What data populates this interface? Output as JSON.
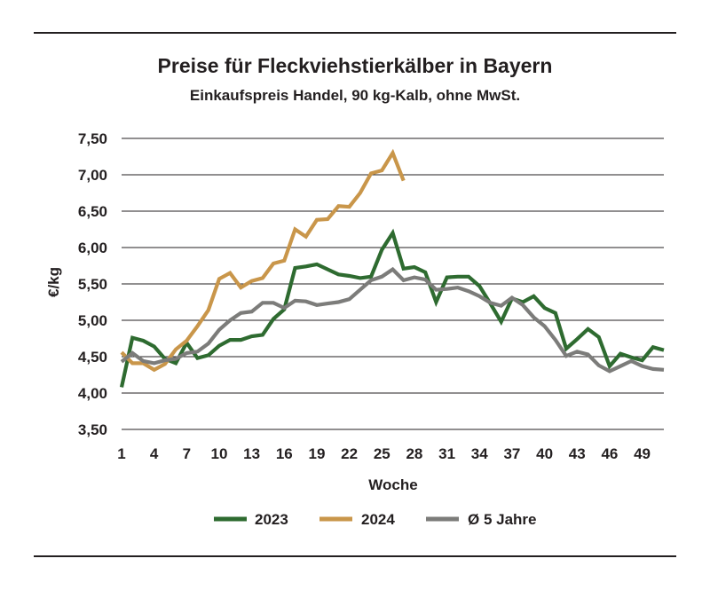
{
  "chart_data": {
    "type": "line",
    "title": "Preise für Fleckviehstierkälber in Bayern",
    "subtitle": "Einkaufspreis Handel, 90 kg-Kalb, ohne MwSt.",
    "xlabel": "Woche",
    "ylabel": "€/kg",
    "xlim": [
      1,
      51
    ],
    "ylim": [
      3.5,
      7.5
    ],
    "x_ticks": [
      1,
      4,
      7,
      10,
      13,
      16,
      19,
      22,
      25,
      28,
      31,
      34,
      37,
      40,
      43,
      46,
      49
    ],
    "y_ticks": [
      3.5,
      4.0,
      4.5,
      5.0,
      5.5,
      6.0,
      6.5,
      7.0,
      7.5
    ],
    "y_tick_labels": [
      "3,50",
      "4,00",
      "4,50",
      "5,00",
      "5,50",
      "6,00",
      "6,50",
      "7,00",
      "7,50"
    ],
    "grid": "horizontal",
    "legend_position": "bottom",
    "series": [
      {
        "name": "2023",
        "color": "#2e6b30",
        "x": [
          1,
          2,
          3,
          4,
          5,
          6,
          7,
          8,
          9,
          10,
          11,
          12,
          13,
          14,
          15,
          16,
          17,
          18,
          19,
          20,
          21,
          22,
          23,
          24,
          25,
          26,
          27,
          28,
          29,
          30,
          31,
          32,
          33,
          34,
          35,
          36,
          37,
          38,
          39,
          40,
          41,
          42,
          43,
          44,
          45,
          46,
          47,
          48,
          49,
          50,
          51
        ],
        "values": [
          4.08,
          4.76,
          4.72,
          4.64,
          4.47,
          4.41,
          4.69,
          4.48,
          4.52,
          4.65,
          4.73,
          4.73,
          4.78,
          4.8,
          5.02,
          5.15,
          5.72,
          5.74,
          5.77,
          5.7,
          5.63,
          5.61,
          5.58,
          5.6,
          5.97,
          6.2,
          5.71,
          5.73,
          5.66,
          5.25,
          5.59,
          5.6,
          5.6,
          5.47,
          5.23,
          4.98,
          5.3,
          5.25,
          5.33,
          5.17,
          5.1,
          4.61,
          4.74,
          4.88,
          4.77,
          4.37,
          4.54,
          4.49,
          4.45,
          4.63,
          4.59
        ]
      },
      {
        "name": "2024",
        "color": "#c9964a",
        "x": [
          1,
          2,
          3,
          4,
          5,
          6,
          7,
          8,
          9,
          10,
          11,
          12,
          13,
          14,
          15,
          16,
          17,
          18,
          19,
          20,
          21,
          22,
          23,
          24,
          25,
          26,
          27
        ],
        "values": [
          4.56,
          4.41,
          4.41,
          4.32,
          4.4,
          4.6,
          4.72,
          4.92,
          5.14,
          5.57,
          5.65,
          5.45,
          5.54,
          5.58,
          5.78,
          5.82,
          6.25,
          6.15,
          6.38,
          6.39,
          6.57,
          6.56,
          6.75,
          7.02,
          7.06,
          7.3,
          6.92
        ]
      },
      {
        "name": "Ø 5 Jahre",
        "color": "#7c7c7a",
        "x": [
          1,
          2,
          3,
          4,
          5,
          6,
          7,
          8,
          9,
          10,
          11,
          12,
          13,
          14,
          15,
          16,
          17,
          18,
          19,
          20,
          21,
          22,
          23,
          24,
          25,
          26,
          27,
          28,
          29,
          30,
          31,
          32,
          33,
          34,
          35,
          36,
          37,
          38,
          39,
          40,
          41,
          42,
          43,
          44,
          45,
          46,
          47,
          48,
          49,
          50,
          51
        ],
        "values": [
          4.43,
          4.55,
          4.44,
          4.41,
          4.45,
          4.47,
          4.55,
          4.57,
          4.68,
          4.87,
          5.0,
          5.1,
          5.12,
          5.24,
          5.24,
          5.17,
          5.27,
          5.26,
          5.21,
          5.23,
          5.25,
          5.29,
          5.42,
          5.55,
          5.6,
          5.7,
          5.55,
          5.59,
          5.56,
          5.42,
          5.43,
          5.45,
          5.4,
          5.33,
          5.24,
          5.2,
          5.31,
          5.21,
          5.04,
          4.92,
          4.73,
          4.51,
          4.57,
          4.53,
          4.38,
          4.3,
          4.37,
          4.44,
          4.37,
          4.33,
          4.32
        ]
      }
    ]
  }
}
